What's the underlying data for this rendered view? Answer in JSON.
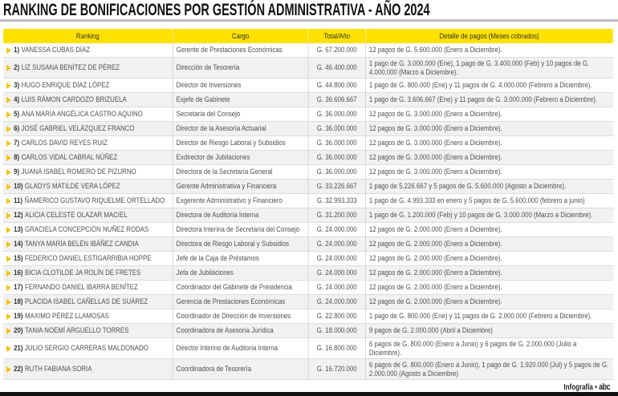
{
  "title": "RANKING DE BONIFICACIONES POR GESTIÓN ADMINISTRATIVA - AÑO 2024",
  "accent_color": "#FFE100",
  "headers": [
    "Ranking",
    "Cargo",
    "Total/Año",
    "Detalle de pagos (Meses cobrados)"
  ],
  "rows": [
    {
      "rank": "1)",
      "name": "VANESSA CUBAS DÍAZ",
      "cargo": "Gerente de Prestaciones Económicas",
      "total": "G. 67.200.000",
      "detalle": "12 pagos de G. 5.600.000 (Enero a Diciembre)."
    },
    {
      "rank": "2)",
      "name": "LIZ SUSANA BENÍTEZ DE PÉREZ",
      "cargo": "Dirección de Tesorería",
      "total": "G. 46.400.000",
      "detalle": "1 pago de G. 3.000.000 (Ene), 1 pago de G. 3.400.000 (Feb) y 10 pagos de G. 4.000.000 (Marzo a Diciembre)."
    },
    {
      "rank": "3)",
      "name": "HUGO ENRIQUE DÍAZ LÓPEZ",
      "cargo": "Director de Inversiones",
      "total": "G. 44.800.000",
      "detalle": "1 pago de G. 800.000 (Ene) y 11 pagos de G. 4.000.000 (Febrero a Diciembre)."
    },
    {
      "rank": "4)",
      "name": "LUIS RÁMON CARDOZO BRIZUELA",
      "cargo": "Exjefe de Gabinete",
      "total": "G. 36.606.667",
      "detalle": "1 pago de G. 3.606.667 (Ene) y 11 pagos de G. 3.000.000 (Febrero a Diciembre)."
    },
    {
      "rank": "5)",
      "name": "ANA MARÍA ANGÉLICA CASTRO AQUINO",
      "cargo": "Secretaria del Consejo",
      "total": "G. 36.000.000",
      "detalle": "12 pagos de G. 3.000.000 (Enero a Diciembre)."
    },
    {
      "rank": "6)",
      "name": "JOSÉ GABRIEL VELÁZQUEZ FRANCO",
      "cargo": "Director de la Asesoría Actuarial",
      "total": "G. 36.000.000",
      "detalle": "12 pagos de G. 3.000.000 (Enero a Diciembre)."
    },
    {
      "rank": "7)",
      "name": "CARLOS DAVID REYES RUIZ",
      "cargo": "Director de Riesgo Laboral y Subsidios",
      "total": "G. 36.000.000",
      "detalle": "12 pagos de G. 3.000.000 (Enero a Diciembre)."
    },
    {
      "rank": "8)",
      "name": "CARLOS VIDAL CABRAL NÚÑEZ",
      "cargo": "Exdirector de Jubilaciones",
      "total": "G. 36.000.000",
      "detalle": "12 pagos de G. 3.000.000 (Enero a Diciembre)."
    },
    {
      "rank": "9)",
      "name": "JUANA ISABEL ROMERO DE PIZURNO",
      "cargo": "Directora de la Secretaría General",
      "total": "G. 36.000.000",
      "detalle": "12 pagos de G. 3.000.000 (Enero a Diciembre)."
    },
    {
      "rank": "10)",
      "name": "GLADYS MATILDE VERA LÓPEZ",
      "cargo": "Gerente Administrativa y Financiera",
      "total": "G. 33.226.667",
      "detalle": "1 pago de 5.226.667 y 5 pagos de G. 5.600.000 (Agosto a Diciembre)."
    },
    {
      "rank": "11)",
      "name": "ÑAMERICO GUSTAVO RIQUELME ORTELLADO",
      "cargo": "Exgerente Administrativo y Financiero",
      "total": "G. 32.993.333",
      "detalle": "1 pago de G. 4.993.333 en enero y 5 pagos de G. 5.600.000 (febrero a junio)"
    },
    {
      "rank": "12)",
      "name": "ALICIA CELESTE OLAZAR MACIEL",
      "cargo": "Directora de Auditoría Interna",
      "total": "G. 31.200.000",
      "detalle": "1 pago de G. 1.200.000 (Feb) y 10 pagos de G. 3.000.000 (Marzo a Diciembre)."
    },
    {
      "rank": "13)",
      "name": "GRACIELA CONCEPCIÓN NUÑEZ RODAS",
      "cargo": "Directora Interina de Secretaría del Consejo",
      "total": "G. 24.000.000",
      "detalle": "12 pagos de G. 2.000.000 (Enero a Diciembre)."
    },
    {
      "rank": "14)",
      "name": "TANYA MARÍA BELÉN IBÁÑEZ CANDIA",
      "cargo": "Directora de Riesgo Laboral y Subsidios",
      "total": "G. 24.000.000",
      "detalle": "12 pagos de G. 2.000.000 (Enero a Diciembre)."
    },
    {
      "rank": "15)",
      "name": "FEDERICO DANIEL ESTIGARRIBIA HOPPE",
      "cargo": "Jefe de la Caja de Préstamos",
      "total": "G. 24.000.000",
      "detalle": "12 pagos de G. 2.000.000 (Enero a Diciembre)."
    },
    {
      "rank": "16)",
      "name": "BICIA CLOTILDE JA ROLÍN DE FRETES",
      "cargo": "Jefa de Jubilaciones",
      "total": "G. 24.000.000",
      "detalle": "12 pagos de G. 2.000.000 (Enero a Diciembre)."
    },
    {
      "rank": "17)",
      "name": "FERNANDO DANIEL IBARRA BENÍTEZ",
      "cargo": "Coordinador del Gabinete de Presidencia",
      "total": "G. 24.000.000",
      "detalle": "12 pagos de G. 2.000.000 (Enero a Diciembre)."
    },
    {
      "rank": "18)",
      "name": "PLACIDA ISABEL CAÑELLAS DE SUÁREZ",
      "cargo": "Gerencia de Prestaciones Económicas",
      "total": "G. 24.000.000",
      "detalle": "12 pagos de G. 2.000.000 (Enero a Diciembre)."
    },
    {
      "rank": "19)",
      "name": "MAXIMO PÉREZ LLAMOSAS",
      "cargo": "Coordinador de Dirección de Inversiones",
      "total": "G. 22.800.000",
      "detalle": "1 pago de G. 800.000 (Ene) y 11 pagos de G. 2.000.000 (Febrero a Diciembre)."
    },
    {
      "rank": "20)",
      "name": "TANIA NOEMÍ ARGUELLO TORRES",
      "cargo": "Coordinadora de Asesoría Jurídica",
      "total": "G. 18.000.000",
      "detalle": "9 pagos de G. 2.000.000 (Abril a Diciembre)"
    },
    {
      "rank": "21)",
      "name": "JULIO SERGIO CARRERAS MALDONADO",
      "cargo": "Director Interino de Auditoria Interna",
      "total": "G. 16.800.000",
      "detalle": "6 pagos de G. 800.000 (Enero a Junio) y 6 pagos de G. 2.000.000 (Julio a Diciembre)."
    },
    {
      "rank": "22)",
      "name": "RUTH FABIANA SORIA",
      "cargo": "Coordinadora de Tesorería",
      "total": "G. 16.720.000",
      "detalle": "6 pagos de G. 800.000 (Enero a Junio), 1 pago de G. 1.920.000 (Jul) y 5 pagos de G. 2.000.000 (Agosto a Diciembre)"
    }
  ],
  "footer": {
    "credit": "Infografía",
    "separator": "•",
    "logo": "abc"
  }
}
